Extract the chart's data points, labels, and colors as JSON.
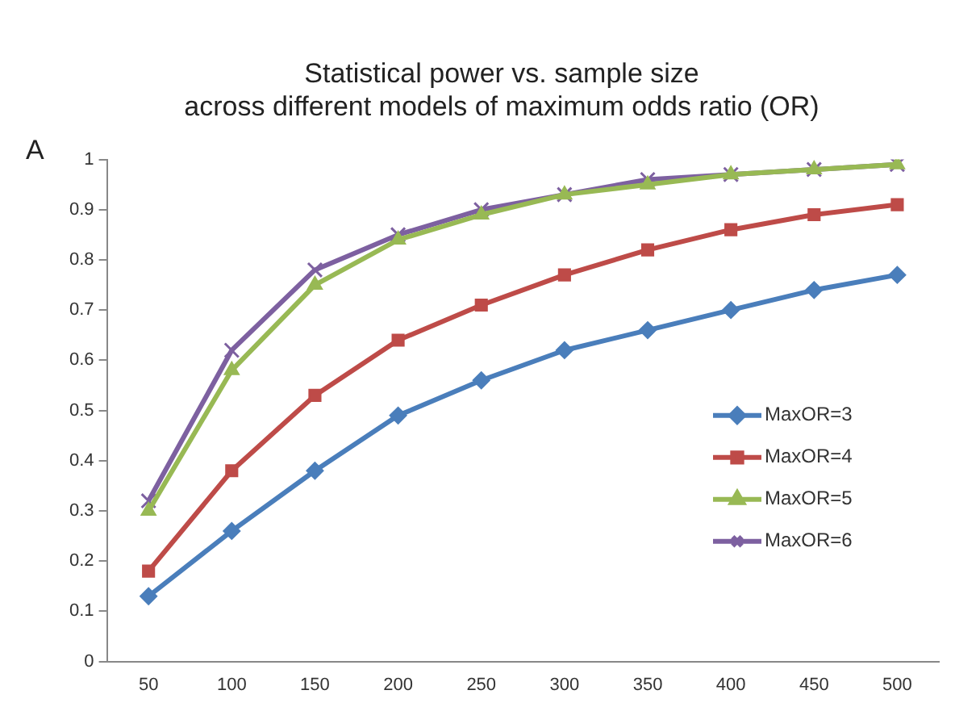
{
  "chart_data": {
    "type": "line",
    "title": "Statistical power vs. sample size",
    "subtitle": "across different models of maximum odds ratio (OR)",
    "annotations": [
      "A"
    ],
    "categories": [
      "50",
      "100",
      "150",
      "200",
      "250",
      "300",
      "350",
      "400",
      "450",
      "500"
    ],
    "series": [
      {
        "name": "MaxOR=3",
        "color": "#4a7ebb",
        "marker": "diamond",
        "values": [
          0.13,
          0.26,
          0.38,
          0.49,
          0.56,
          0.62,
          0.66,
          0.7,
          0.74,
          0.77
        ]
      },
      {
        "name": "MaxOR=4",
        "color": "#be4b48",
        "marker": "square",
        "values": [
          0.18,
          0.38,
          0.53,
          0.64,
          0.71,
          0.77,
          0.82,
          0.86,
          0.89,
          0.91
        ]
      },
      {
        "name": "MaxOR=5",
        "color": "#98b954",
        "marker": "triangle",
        "values": [
          0.3,
          0.58,
          0.75,
          0.84,
          0.89,
          0.93,
          0.95,
          0.97,
          0.98,
          0.99
        ]
      },
      {
        "name": "MaxOR=6",
        "color": "#7d60a0",
        "marker": "cross",
        "values": [
          0.32,
          0.62,
          0.78,
          0.85,
          0.9,
          0.93,
          0.96,
          0.97,
          0.98,
          0.99
        ]
      }
    ],
    "ylim": [
      0,
      1
    ],
    "yticks": [
      0,
      0.1,
      0.2,
      0.3,
      0.4,
      0.5,
      0.6,
      0.7,
      0.8,
      0.9,
      1
    ],
    "grid": false,
    "legend": "right",
    "line_style": "solid"
  }
}
